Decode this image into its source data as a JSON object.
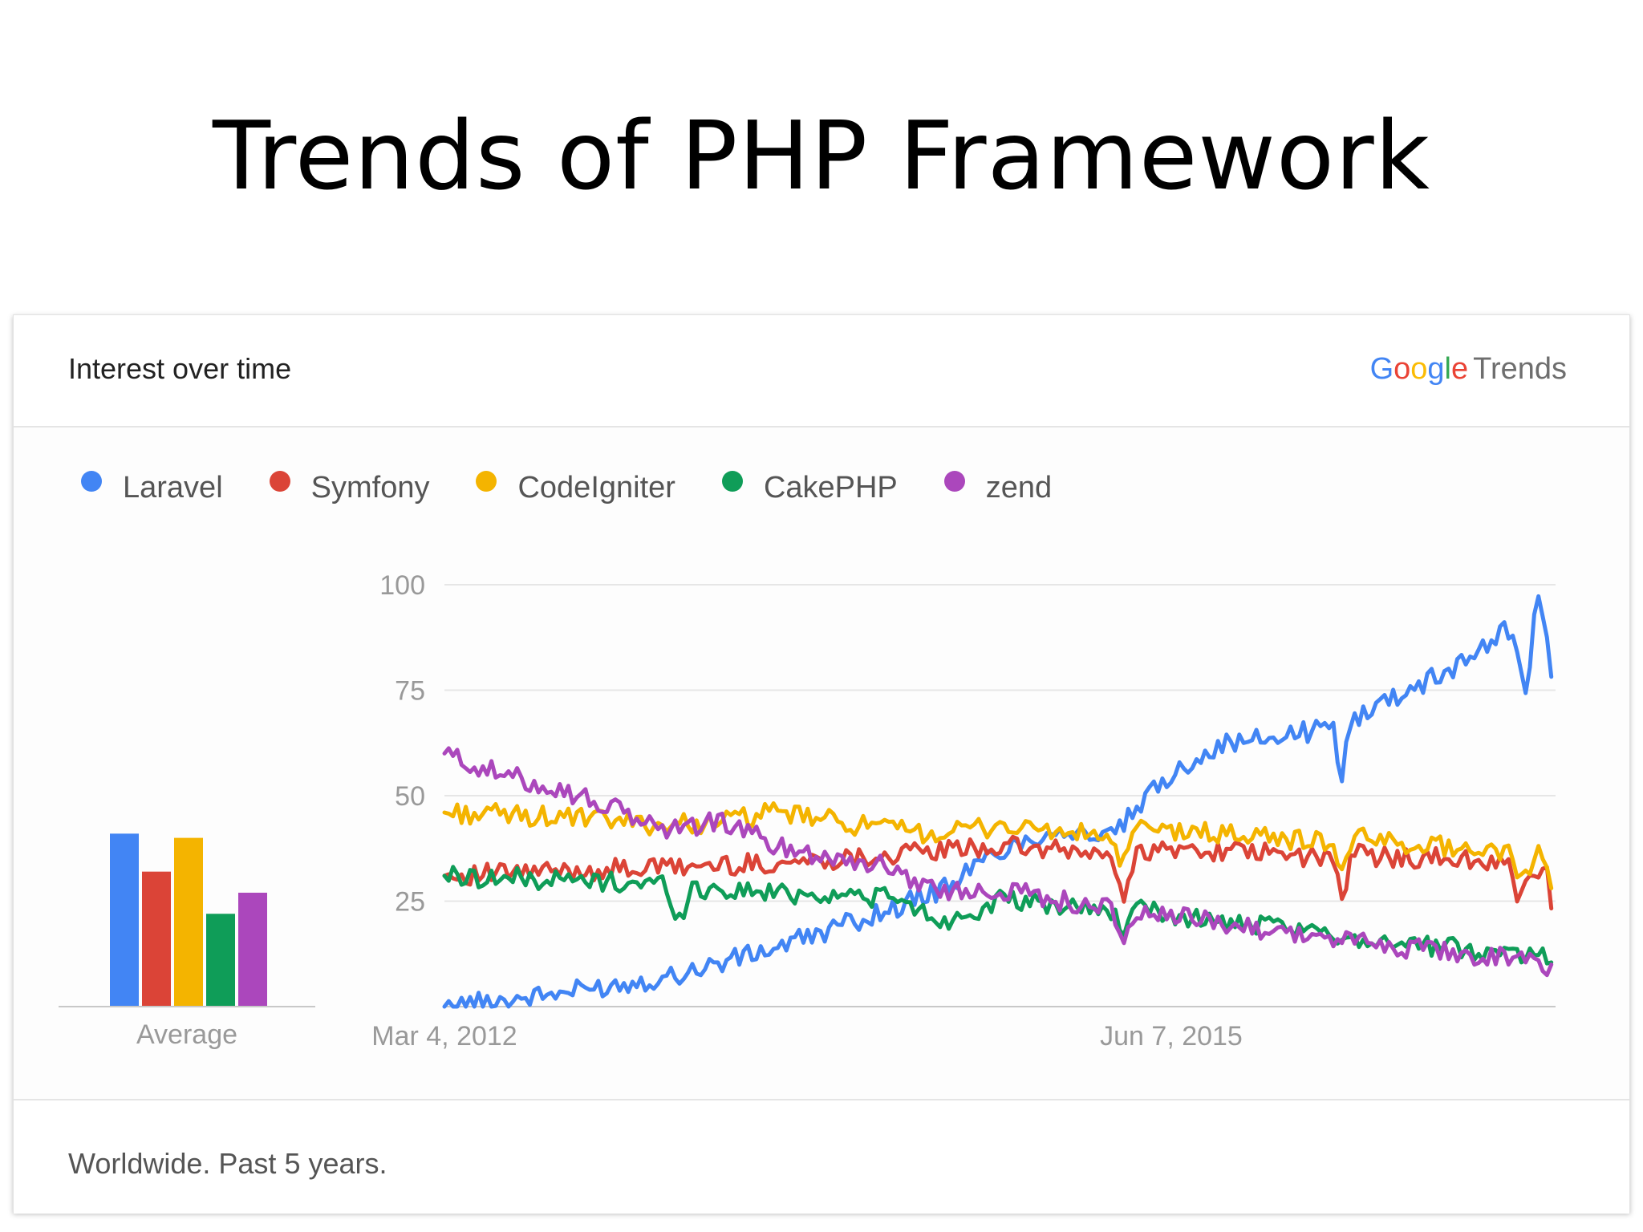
{
  "slide": {
    "title": "Trends of PHP Framework"
  },
  "card": {
    "title": "Interest over time",
    "logo": {
      "google": "Google",
      "trends": "Trends"
    },
    "footer": "Worldwide. Past 5 years."
  },
  "colors": {
    "Laravel": "#4285f4",
    "Symfony": "#db4437",
    "CodeIgniter": "#f4b400",
    "CakePHP": "#0f9d58",
    "zend": "#ab47bc"
  },
  "chart_data": [
    {
      "type": "bar",
      "xlabel": "Average",
      "categories": [
        "Laravel",
        "Symfony",
        "CodeIgniter",
        "CakePHP",
        "zend"
      ],
      "values": [
        41,
        32,
        40,
        22,
        27
      ],
      "ylim": [
        0,
        100
      ]
    },
    {
      "type": "line",
      "x_tick_labels": [
        "Mar 4, 2012",
        "Jun 7, 2015"
      ],
      "x_range": [
        "2012-01-01",
        "2017-01-01"
      ],
      "y_ticks": [
        25,
        50,
        75,
        100
      ],
      "ylim": [
        0,
        100
      ],
      "grid": true,
      "legend_position": "top-left",
      "series": [
        {
          "name": "Laravel",
          "x": [
            "2012-01-01",
            "2012-07-01",
            "2013-01-01",
            "2013-07-01",
            "2014-01-01",
            "2014-04-01",
            "2014-07-01",
            "2014-10-01",
            "2015-01-01",
            "2015-04-01",
            "2015-06-01",
            "2015-07-01",
            "2015-10-01",
            "2016-01-01",
            "2016-01-15",
            "2016-02-01",
            "2016-04-01",
            "2016-07-01",
            "2016-09-01",
            "2016-10-15",
            "2016-11-15",
            "2016-12-01",
            "2016-12-31"
          ],
          "values": [
            0,
            3,
            7,
            14,
            23,
            28,
            37,
            42,
            40,
            54,
            60,
            62,
            64,
            66,
            55,
            68,
            73,
            79,
            85,
            90,
            74,
            100,
            75
          ]
        },
        {
          "name": "Symfony",
          "x": [
            "2012-01-01",
            "2012-07-01",
            "2013-01-01",
            "2013-07-01",
            "2014-01-01",
            "2014-07-01",
            "2015-01-01",
            "2015-01-20",
            "2015-02-10",
            "2015-07-01",
            "2016-01-01",
            "2016-01-15",
            "2016-02-01",
            "2016-07-01",
            "2016-10-15",
            "2016-11-01",
            "2016-12-15",
            "2016-12-31"
          ],
          "values": [
            31,
            32,
            33,
            34,
            36,
            38,
            36,
            24,
            37,
            37,
            35,
            25,
            36,
            35,
            34,
            25,
            35,
            18
          ]
        },
        {
          "name": "CodeIgniter",
          "x": [
            "2012-01-01",
            "2012-07-01",
            "2013-01-01",
            "2013-04-01",
            "2013-07-01",
            "2014-01-01",
            "2014-04-01",
            "2014-07-01",
            "2015-01-01",
            "2015-01-20",
            "2015-02-10",
            "2015-07-01",
            "2016-01-01",
            "2016-01-15",
            "2016-02-01",
            "2016-07-01",
            "2016-10-15",
            "2016-11-01",
            "2016-12-15",
            "2016-12-31"
          ],
          "values": [
            46,
            45,
            43,
            44,
            46,
            42,
            41,
            43,
            40,
            33,
            42,
            41,
            39,
            31,
            40,
            38,
            37,
            30,
            38,
            22
          ]
        },
        {
          "name": "CakePHP",
          "x": [
            "2012-01-01",
            "2012-07-01",
            "2013-01-01",
            "2013-01-20",
            "2013-02-10",
            "2013-07-01",
            "2014-01-01",
            "2014-04-01",
            "2014-07-01",
            "2015-01-01",
            "2015-01-20",
            "2015-02-10",
            "2015-07-01",
            "2016-01-01",
            "2016-07-01",
            "2016-12-31"
          ],
          "values": [
            31,
            30,
            29,
            20,
            28,
            27,
            26,
            20,
            25,
            23,
            18,
            23,
            20,
            17,
            14,
            12
          ]
        },
        {
          "name": "zend",
          "x": [
            "2012-01-01",
            "2012-04-01",
            "2012-07-01",
            "2012-10-01",
            "2013-01-01",
            "2013-04-01",
            "2013-07-01",
            "2014-01-01",
            "2014-04-01",
            "2014-07-01",
            "2015-01-01",
            "2015-01-20",
            "2015-02-10",
            "2015-07-01",
            "2016-01-01",
            "2016-07-01",
            "2016-12-01",
            "2016-12-31"
          ],
          "values": [
            60,
            55,
            52,
            47,
            42,
            44,
            38,
            33,
            27,
            28,
            23,
            16,
            22,
            20,
            16,
            13,
            11,
            7
          ]
        }
      ]
    }
  ]
}
